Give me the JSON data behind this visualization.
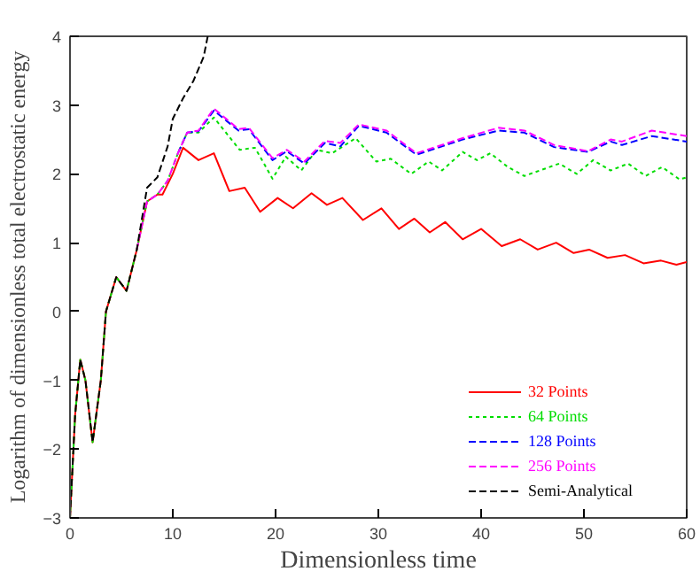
{
  "chart_data": {
    "type": "line",
    "xlabel": "Dimensionless time",
    "ylabel": "Logarithm of dimensionless total electrostatic energy",
    "xlim": [
      0,
      60
    ],
    "ylim": [
      -3,
      4
    ],
    "xticks": [
      0,
      10,
      20,
      30,
      40,
      50,
      60
    ],
    "yticks": [
      -3,
      -2,
      -1,
      0,
      1,
      2,
      3,
      4
    ],
    "grid": false,
    "legend": "bottom right",
    "marker": "none",
    "series": [
      {
        "name": "32 Points",
        "color": "#ff0000",
        "line_style": "solid",
        "x": [
          0,
          0.5,
          1,
          1.5,
          2.2,
          3,
          3.5,
          4.5,
          5.5,
          6.5,
          7.5,
          8.5,
          9,
          10,
          11,
          12.5,
          14,
          15.5,
          17,
          18.5,
          20.2,
          21.7,
          23.5,
          25,
          26.5,
          28.5,
          30.3,
          32,
          33.5,
          35,
          36.5,
          38.2,
          40,
          42,
          43.8,
          45.5,
          47.3,
          49,
          50.5,
          52.3,
          54,
          55.8,
          57.5,
          59,
          60
        ],
        "values": [
          -3,
          -1.5,
          -0.7,
          -1.0,
          -1.9,
          -1.0,
          0,
          0.5,
          0.3,
          0.9,
          1.6,
          1.7,
          1.7,
          2.0,
          2.38,
          2.2,
          2.3,
          1.75,
          1.8,
          1.45,
          1.65,
          1.5,
          1.72,
          1.55,
          1.65,
          1.33,
          1.5,
          1.2,
          1.35,
          1.15,
          1.3,
          1.05,
          1.2,
          0.95,
          1.05,
          0.9,
          1.0,
          0.85,
          0.9,
          0.78,
          0.82,
          0.7,
          0.74,
          0.68,
          0.72
        ]
      },
      {
        "name": "64 Points",
        "color": "#00dd00",
        "line_style": "dotted",
        "x": [
          0,
          0.5,
          1,
          1.5,
          2.2,
          3,
          3.5,
          4.5,
          5.5,
          6.5,
          7.5,
          8.5,
          9.5,
          10.5,
          11.4,
          12.5,
          14,
          16.5,
          18,
          19.7,
          21,
          22.5,
          24,
          25.5,
          27.8,
          29.8,
          31.2,
          33.2,
          34.9,
          36.2,
          38.2,
          39.6,
          40.9,
          42.6,
          44.2,
          47.6,
          49.3,
          50.9,
          52.6,
          54.3,
          56,
          57.6,
          59.3,
          60
        ],
        "values": [
          -3,
          -1.5,
          -0.7,
          -1.0,
          -1.9,
          -1.0,
          0,
          0.5,
          0.3,
          0.9,
          1.6,
          1.7,
          1.9,
          2.3,
          2.6,
          2.6,
          2.82,
          2.35,
          2.38,
          1.93,
          2.25,
          2.05,
          2.35,
          2.3,
          2.52,
          2.18,
          2.22,
          2.0,
          2.18,
          2.05,
          2.32,
          2.2,
          2.3,
          2.1,
          1.97,
          2.15,
          2.0,
          2.2,
          2.05,
          2.15,
          1.97,
          2.1,
          1.92,
          1.95
        ]
      },
      {
        "name": "128 Points",
        "color": "#0000ff",
        "line_style": "dashed",
        "x": [
          10.5,
          11.4,
          12.5,
          14,
          16.4,
          17.4,
          19.7,
          21.1,
          22.8,
          24.8,
          26.3,
          28.1,
          30.8,
          33.7,
          38.2,
          41.7,
          44.2,
          47.1,
          50.4,
          52.6,
          53.7,
          56.6,
          60
        ],
        "values": [
          2.3,
          2.6,
          2.62,
          2.92,
          2.63,
          2.65,
          2.2,
          2.33,
          2.15,
          2.45,
          2.4,
          2.7,
          2.6,
          2.28,
          2.5,
          2.63,
          2.6,
          2.39,
          2.32,
          2.47,
          2.42,
          2.55,
          2.47
        ]
      },
      {
        "name": "256 Points",
        "color": "#ff00ff",
        "line_style": "dashed",
        "x": [
          6.5,
          7.5,
          8.5,
          9.5,
          10.5,
          11.4,
          12.5,
          14,
          16.4,
          17.4,
          19.7,
          21.1,
          22.8,
          24.8,
          26.3,
          28.1,
          30.8,
          33.7,
          38.2,
          41.7,
          44.2,
          47.1,
          50.4,
          52.6,
          53.7,
          56.6,
          60
        ],
        "values": [
          0.9,
          1.6,
          1.7,
          1.9,
          2.3,
          2.6,
          2.63,
          2.95,
          2.65,
          2.67,
          2.23,
          2.35,
          2.18,
          2.48,
          2.45,
          2.72,
          2.63,
          2.3,
          2.52,
          2.67,
          2.63,
          2.42,
          2.33,
          2.5,
          2.47,
          2.63,
          2.55
        ]
      },
      {
        "name": "Semi-Analytical",
        "color": "#000000",
        "line_style": "dashed",
        "x": [
          0,
          0.5,
          1,
          1.5,
          2.2,
          3,
          3.5,
          4.5,
          5.5,
          6.5,
          7.5,
          8.5,
          9.5,
          10,
          11,
          12,
          13,
          13.4
        ],
        "values": [
          -3,
          -1.5,
          -0.7,
          -1.0,
          -1.9,
          -1.0,
          0,
          0.5,
          0.3,
          0.9,
          1.8,
          1.95,
          2.4,
          2.8,
          3.1,
          3.35,
          3.7,
          4.0
        ]
      }
    ]
  }
}
